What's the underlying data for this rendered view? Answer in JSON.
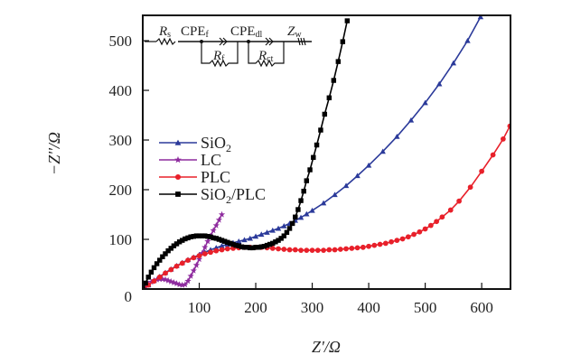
{
  "chart_data": {
    "type": "scatter",
    "title": "",
    "xlabel": "Z'/Ω",
    "ylabel": "−Z''/Ω",
    "xlim": [
      0,
      651
    ],
    "ylim": [
      0,
      551
    ],
    "xticks": [
      100,
      200,
      300,
      400,
      500,
      600
    ],
    "yticks": [
      0,
      100,
      200,
      300,
      400,
      500
    ],
    "xtick_labels": [
      "100",
      "200",
      "300",
      "400",
      "500",
      "600"
    ],
    "ytick_labels": [
      "0",
      "100",
      "200",
      "300",
      "400",
      "500"
    ],
    "grid": false,
    "legend_position": "center-left",
    "circuit_inset": {
      "labels": [
        "Rs",
        "CPEf",
        "CPEdl",
        "Zw",
        "Rf",
        "Rct"
      ],
      "position": "top-left"
    },
    "series": [
      {
        "name": "SiO2",
        "legend_label": "SiO",
        "legend_sub": "2",
        "color": "#2b3a9a",
        "marker": "triangle",
        "points": [
          [
            0,
            0
          ],
          [
            10,
            8
          ],
          [
            20,
            17
          ],
          [
            30,
            25
          ],
          [
            40,
            33
          ],
          [
            50,
            40
          ],
          [
            60,
            47
          ],
          [
            70,
            53
          ],
          [
            80,
            59
          ],
          [
            90,
            64
          ],
          [
            100,
            69
          ],
          [
            110,
            74
          ],
          [
            120,
            79
          ],
          [
            130,
            83
          ],
          [
            140,
            87
          ],
          [
            150,
            90
          ],
          [
            160,
            93
          ],
          [
            170,
            96
          ],
          [
            180,
            99
          ],
          [
            190,
            102
          ],
          [
            200,
            106
          ],
          [
            210,
            110
          ],
          [
            220,
            114
          ],
          [
            230,
            118
          ],
          [
            240,
            122
          ],
          [
            250,
            127
          ],
          [
            260,
            132
          ],
          [
            270,
            138
          ],
          [
            280,
            144
          ],
          [
            290,
            151
          ],
          [
            300,
            158
          ],
          [
            320,
            173
          ],
          [
            340,
            190
          ],
          [
            360,
            208
          ],
          [
            380,
            228
          ],
          [
            400,
            249
          ],
          [
            425,
            277
          ],
          [
            450,
            307
          ],
          [
            475,
            340
          ],
          [
            500,
            375
          ],
          [
            525,
            413
          ],
          [
            550,
            455
          ],
          [
            575,
            500
          ],
          [
            598,
            548
          ]
        ]
      },
      {
        "name": "LC",
        "legend_label": "LC",
        "legend_sub": "",
        "color": "#8e2b9e",
        "marker": "star",
        "points": [
          [
            0,
            0
          ],
          [
            5,
            5
          ],
          [
            10,
            10
          ],
          [
            15,
            14
          ],
          [
            20,
            17
          ],
          [
            25,
            19
          ],
          [
            30,
            20
          ],
          [
            35,
            20
          ],
          [
            40,
            19
          ],
          [
            45,
            17
          ],
          [
            50,
            15
          ],
          [
            55,
            13
          ],
          [
            60,
            11
          ],
          [
            65,
            9
          ],
          [
            70,
            8
          ],
          [
            75,
            9
          ],
          [
            80,
            16
          ],
          [
            85,
            26
          ],
          [
            90,
            37
          ],
          [
            95,
            48
          ],
          [
            100,
            60
          ],
          [
            105,
            72
          ],
          [
            110,
            84
          ],
          [
            115,
            96
          ],
          [
            120,
            107
          ],
          [
            125,
            118
          ],
          [
            130,
            128
          ],
          [
            135,
            139
          ],
          [
            140,
            150
          ]
        ]
      },
      {
        "name": "PLC",
        "legend_label": "PLC",
        "legend_sub": "",
        "color": "#e8202a",
        "marker": "circle",
        "points": [
          [
            0,
            0
          ],
          [
            10,
            8
          ],
          [
            20,
            16
          ],
          [
            30,
            24
          ],
          [
            40,
            32
          ],
          [
            50,
            39
          ],
          [
            60,
            46
          ],
          [
            70,
            52
          ],
          [
            80,
            58
          ],
          [
            90,
            63
          ],
          [
            100,
            67
          ],
          [
            110,
            71
          ],
          [
            120,
            74
          ],
          [
            130,
            77
          ],
          [
            140,
            79
          ],
          [
            150,
            81
          ],
          [
            160,
            82
          ],
          [
            170,
            83
          ],
          [
            180,
            84
          ],
          [
            190,
            84
          ],
          [
            200,
            84
          ],
          [
            210,
            84
          ],
          [
            220,
            83
          ],
          [
            230,
            82
          ],
          [
            240,
            81
          ],
          [
            250,
            80
          ],
          [
            260,
            79
          ],
          [
            270,
            79
          ],
          [
            280,
            78
          ],
          [
            290,
            78
          ],
          [
            300,
            78
          ],
          [
            310,
            78
          ],
          [
            320,
            78
          ],
          [
            330,
            79
          ],
          [
            340,
            79
          ],
          [
            350,
            80
          ],
          [
            360,
            81
          ],
          [
            370,
            82
          ],
          [
            380,
            83
          ],
          [
            390,
            84
          ],
          [
            400,
            86
          ],
          [
            410,
            88
          ],
          [
            420,
            90
          ],
          [
            430,
            92
          ],
          [
            440,
            95
          ],
          [
            450,
            98
          ],
          [
            460,
            101
          ],
          [
            470,
            105
          ],
          [
            480,
            110
          ],
          [
            490,
            115
          ],
          [
            500,
            121
          ],
          [
            510,
            128
          ],
          [
            520,
            136
          ],
          [
            530,
            145
          ],
          [
            545,
            159
          ],
          [
            560,
            177
          ],
          [
            580,
            205
          ],
          [
            600,
            237
          ],
          [
            620,
            270
          ],
          [
            638,
            302
          ],
          [
            650,
            328
          ]
        ]
      },
      {
        "name": "SiO2/PLC",
        "legend_label": "SiO",
        "legend_sub": "2",
        "legend_suffix": "/PLC",
        "color": "#000000",
        "marker": "square",
        "points": [
          [
            0,
            0
          ],
          [
            5,
            12
          ],
          [
            10,
            24
          ],
          [
            15,
            34
          ],
          [
            20,
            43
          ],
          [
            25,
            51
          ],
          [
            30,
            58
          ],
          [
            35,
            65
          ],
          [
            40,
            71
          ],
          [
            45,
            77
          ],
          [
            50,
            82
          ],
          [
            55,
            87
          ],
          [
            60,
            91
          ],
          [
            65,
            95
          ],
          [
            70,
            98
          ],
          [
            75,
            101
          ],
          [
            80,
            103
          ],
          [
            85,
            105
          ],
          [
            90,
            106
          ],
          [
            95,
            107
          ],
          [
            100,
            107
          ],
          [
            105,
            107
          ],
          [
            110,
            107
          ],
          [
            115,
            106
          ],
          [
            120,
            105
          ],
          [
            125,
            103
          ],
          [
            130,
            102
          ],
          [
            135,
            100
          ],
          [
            140,
            98
          ],
          [
            145,
            96
          ],
          [
            150,
            94
          ],
          [
            155,
            92
          ],
          [
            160,
            90
          ],
          [
            165,
            88
          ],
          [
            170,
            87
          ],
          [
            175,
            85
          ],
          [
            180,
            84
          ],
          [
            185,
            84
          ],
          [
            190,
            83
          ],
          [
            195,
            83
          ],
          [
            200,
            84
          ],
          [
            205,
            84
          ],
          [
            210,
            85
          ],
          [
            215,
            86
          ],
          [
            220,
            88
          ],
          [
            225,
            90
          ],
          [
            230,
            92
          ],
          [
            235,
            95
          ],
          [
            240,
            98
          ],
          [
            245,
            102
          ],
          [
            250,
            107
          ],
          [
            255,
            114
          ],
          [
            260,
            122
          ],
          [
            265,
            132
          ],
          [
            270,
            145
          ],
          [
            275,
            160
          ],
          [
            280,
            178
          ],
          [
            285,
            197
          ],
          [
            290,
            218
          ],
          [
            296,
            240
          ],
          [
            302,
            265
          ],
          [
            308,
            290
          ],
          [
            315,
            320
          ],
          [
            322,
            352
          ],
          [
            330,
            385
          ],
          [
            338,
            420
          ],
          [
            346,
            458
          ],
          [
            354,
            498
          ],
          [
            362,
            540
          ]
        ]
      }
    ]
  }
}
